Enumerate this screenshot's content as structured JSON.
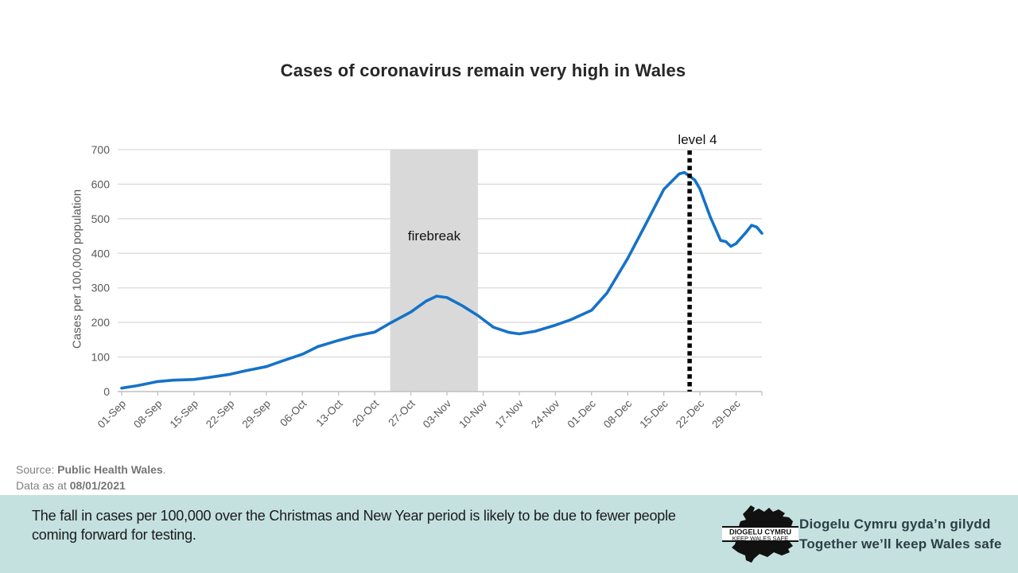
{
  "title": "Cases of coronavirus remain very high in Wales",
  "chart_data": {
    "type": "line",
    "title": "Cases of coronavirus remain very high in Wales",
    "xlabel": "",
    "ylabel": "Cases per 100,000 population",
    "ylim": [
      0,
      700
    ],
    "yticks": [
      0,
      100,
      200,
      300,
      400,
      500,
      600,
      700
    ],
    "grid": true,
    "x_ticks": [
      {
        "day": 0,
        "label": "01-Sep"
      },
      {
        "day": 7,
        "label": "08-Sep"
      },
      {
        "day": 14,
        "label": "15-Sep"
      },
      {
        "day": 21,
        "label": "22-Sep"
      },
      {
        "day": 28,
        "label": "29-Sep"
      },
      {
        "day": 35,
        "label": "06-Oct"
      },
      {
        "day": 42,
        "label": "13-Oct"
      },
      {
        "day": 49,
        "label": "20-Oct"
      },
      {
        "day": 56,
        "label": "27-Oct"
      },
      {
        "day": 63,
        "label": "03-Nov"
      },
      {
        "day": 70,
        "label": "10-Nov"
      },
      {
        "day": 77,
        "label": "17-Nov"
      },
      {
        "day": 84,
        "label": "24-Nov"
      },
      {
        "day": 91,
        "label": "01-Dec"
      },
      {
        "day": 98,
        "label": "08-Dec"
      },
      {
        "day": 105,
        "label": "15-Dec"
      },
      {
        "day": 112,
        "label": "22-Dec"
      },
      {
        "day": 119,
        "label": "29-Dec"
      }
    ],
    "x_domain_days": [
      0,
      124
    ],
    "series": [
      {
        "name": "Cases per 100,000 population",
        "color": "#1572c8",
        "points": [
          [
            0,
            10
          ],
          [
            3,
            17
          ],
          [
            7,
            29
          ],
          [
            10,
            33
          ],
          [
            14,
            35
          ],
          [
            17,
            41
          ],
          [
            21,
            50
          ],
          [
            24,
            60
          ],
          [
            28,
            72
          ],
          [
            31,
            88
          ],
          [
            35,
            108
          ],
          [
            38,
            130
          ],
          [
            42,
            148
          ],
          [
            45,
            160
          ],
          [
            49,
            172
          ],
          [
            52,
            198
          ],
          [
            56,
            230
          ],
          [
            59,
            262
          ],
          [
            61,
            276
          ],
          [
            63,
            272
          ],
          [
            66,
            248
          ],
          [
            69,
            220
          ],
          [
            72,
            186
          ],
          [
            75,
            171
          ],
          [
            77,
            167
          ],
          [
            80,
            174
          ],
          [
            84,
            192
          ],
          [
            87,
            208
          ],
          [
            91,
            235
          ],
          [
            94,
            285
          ],
          [
            98,
            385
          ],
          [
            101,
            470
          ],
          [
            105,
            585
          ],
          [
            108,
            630
          ],
          [
            109,
            634
          ],
          [
            111,
            612
          ],
          [
            112,
            586
          ],
          [
            114,
            505
          ],
          [
            116,
            437
          ],
          [
            117,
            434
          ],
          [
            118,
            420
          ],
          [
            119,
            428
          ],
          [
            121,
            462
          ],
          [
            122,
            481
          ],
          [
            123,
            476
          ],
          [
            124,
            458
          ]
        ]
      }
    ],
    "band": {
      "label": "firebreak",
      "start_day": 52,
      "end_day": 69,
      "color": "#d9d9d9"
    },
    "marker": {
      "label": "level 4",
      "day": 110,
      "color": "#000000"
    },
    "colors": {
      "gridline": "#d9d9d9",
      "axis": "#bfbfbf",
      "tick_text": "#595959"
    }
  },
  "source": {
    "prefix": "Source: ",
    "name": "Public Health Wales",
    "suffix": ".",
    "data_prefix": "Data as at ",
    "date": "08/01/2021"
  },
  "banner": {
    "text": "The fall in cases per 100,000 over the Christmas and New Year period is likely to be due to fewer people coming forward for testing.",
    "bg": "#c4e1e0"
  },
  "logo": {
    "line1": "DIOGELU CYMRU",
    "line2": "KEEP WALES SAFE"
  },
  "caption": {
    "line1": "Diogelu Cymru gyda’n gilydd",
    "line2": "Together we’ll keep Wales safe"
  }
}
